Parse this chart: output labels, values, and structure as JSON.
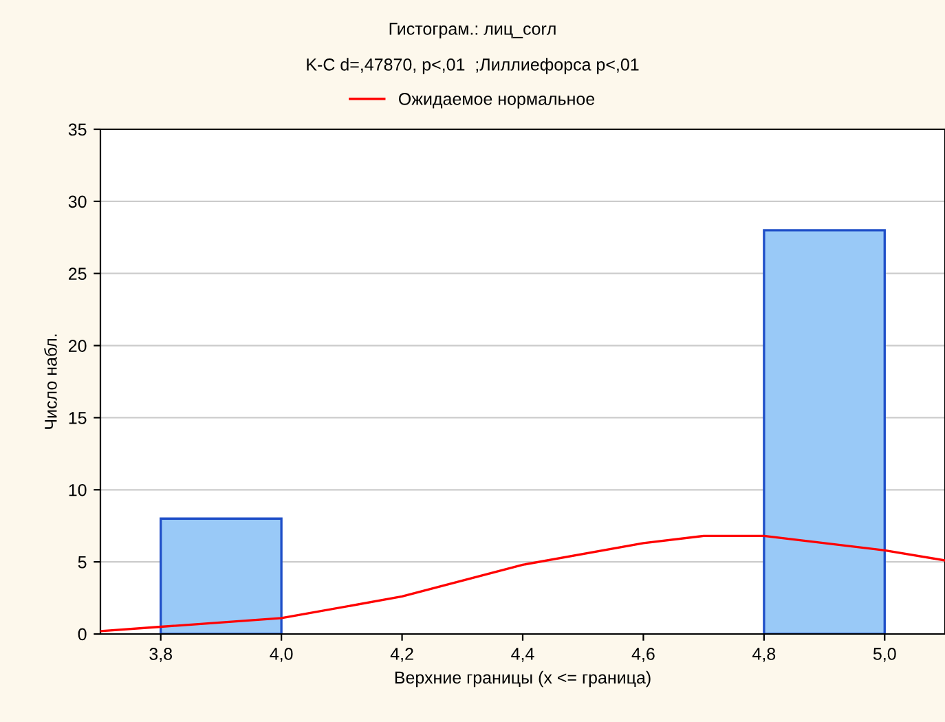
{
  "chart_data": {
    "type": "histogram",
    "title": "Гистограм.: лиц_corл",
    "subtitle": "K-C d=,47870, p<,01  ;Лиллиефорса p<,01",
    "xlabel": "Верхние границы (x <= граница)",
    "ylabel": "Число набл.",
    "bins": [
      3.8,
      4.0,
      4.2,
      4.4,
      4.6,
      4.8,
      5.0
    ],
    "values": [
      8,
      0,
      0,
      0,
      0,
      28
    ],
    "color": "#99c9f7",
    "series": [
      {
        "type": "line",
        "name": "Ожидаемое нормальное",
        "color": "#ff0000",
        "x": [
          3.7,
          3.8,
          4.0,
          4.2,
          4.4,
          4.6,
          4.7,
          4.8,
          5.0,
          5.1
        ],
        "values": [
          0.2,
          0.5,
          1.1,
          2.6,
          4.8,
          6.3,
          6.8,
          6.8,
          5.8,
          5.1
        ]
      }
    ],
    "xlim": [
      3.7,
      5.1
    ],
    "xticks": [
      {
        "value": 3.8,
        "label": "3,8"
      },
      {
        "value": 4.0,
        "label": "4,0"
      },
      {
        "value": 4.2,
        "label": "4,2"
      },
      {
        "value": 4.4,
        "label": "4,4"
      },
      {
        "value": 4.6,
        "label": "4,6"
      },
      {
        "value": 4.8,
        "label": "4,8"
      },
      {
        "value": 5.0,
        "label": "5,0"
      }
    ],
    "ylim": [
      0,
      35
    ],
    "yticks": [
      0,
      5,
      10,
      15,
      20,
      25,
      30,
      35
    ],
    "grid": "y",
    "legend": "top"
  }
}
